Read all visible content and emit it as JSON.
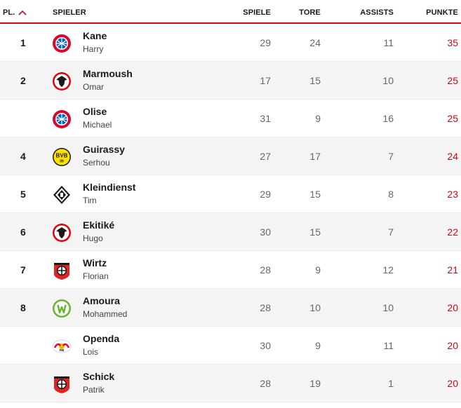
{
  "header": {
    "rank": "PL.",
    "player": "SPIELER",
    "games": "SPIELE",
    "goals": "TORE",
    "assists": "ASSISTS",
    "points": "PUNKTE",
    "sort_icon": "chevron-up-icon",
    "accent_color": "#d20515"
  },
  "rows": [
    {
      "rank": "1",
      "lastname": "Kane",
      "firstname": "Harry",
      "club_icon": "bayern-muenchen-crest",
      "games": "29",
      "goals": "24",
      "assists": "11",
      "points": "35"
    },
    {
      "rank": "2",
      "lastname": "Marmoush",
      "firstname": "Omar",
      "club_icon": "eintracht-frankfurt-crest",
      "games": "17",
      "goals": "15",
      "assists": "10",
      "points": "25"
    },
    {
      "rank": "",
      "lastname": "Olise",
      "firstname": "Michael",
      "club_icon": "bayern-muenchen-crest",
      "games": "31",
      "goals": "9",
      "assists": "16",
      "points": "25"
    },
    {
      "rank": "4",
      "lastname": "Guirassy",
      "firstname": "Serhou",
      "club_icon": "borussia-dortmund-crest",
      "games": "27",
      "goals": "17",
      "assists": "7",
      "points": "24"
    },
    {
      "rank": "5",
      "lastname": "Kleindienst",
      "firstname": "Tim",
      "club_icon": "borussia-moenchengladbach-crest",
      "games": "29",
      "goals": "15",
      "assists": "8",
      "points": "23"
    },
    {
      "rank": "6",
      "lastname": "Ekitiké",
      "firstname": "Hugo",
      "club_icon": "eintracht-frankfurt-crest",
      "games": "30",
      "goals": "15",
      "assists": "7",
      "points": "22"
    },
    {
      "rank": "7",
      "lastname": "Wirtz",
      "firstname": "Florian",
      "club_icon": "bayer-leverkusen-crest",
      "games": "28",
      "goals": "9",
      "assists": "12",
      "points": "21"
    },
    {
      "rank": "8",
      "lastname": "Amoura",
      "firstname": "Mohammed",
      "club_icon": "vfl-wolfsburg-crest",
      "games": "28",
      "goals": "10",
      "assists": "10",
      "points": "20"
    },
    {
      "rank": "",
      "lastname": "Openda",
      "firstname": "Lois",
      "club_icon": "rb-leipzig-crest",
      "games": "30",
      "goals": "9",
      "assists": "11",
      "points": "20"
    },
    {
      "rank": "",
      "lastname": "Schick",
      "firstname": "Patrik",
      "club_icon": "bayer-leverkusen-crest",
      "games": "28",
      "goals": "19",
      "assists": "1",
      "points": "20"
    }
  ]
}
